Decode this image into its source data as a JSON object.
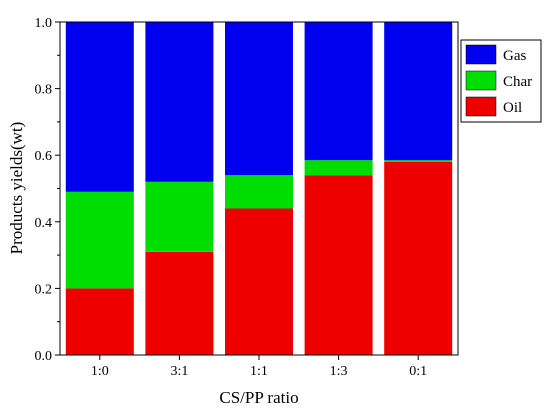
{
  "chart_data": {
    "type": "bar",
    "stacked": true,
    "xlabel": "CS/PP ratio",
    "ylabel": "Products yields(wt)",
    "ylim": [
      0,
      1.0
    ],
    "yticks": [
      "0.0",
      "0.2",
      "0.4",
      "0.6",
      "0.8",
      "1.0"
    ],
    "categories": [
      "1:0",
      "3:1",
      "1:1",
      "1:3",
      "0:1"
    ],
    "legend_position": "top-right",
    "series": [
      {
        "name": "Oil",
        "color": "#ee0000",
        "values": [
          0.2,
          0.31,
          0.44,
          0.54,
          0.58
        ]
      },
      {
        "name": "Char",
        "color": "#00dd00",
        "values": [
          0.29,
          0.21,
          0.1,
          0.045,
          0.005
        ]
      },
      {
        "name": "Gas",
        "color": "#0000ee",
        "values": [
          0.51,
          0.48,
          0.46,
          0.415,
          0.415
        ]
      }
    ],
    "legend_order": [
      "Gas",
      "Char",
      "Oil"
    ]
  }
}
